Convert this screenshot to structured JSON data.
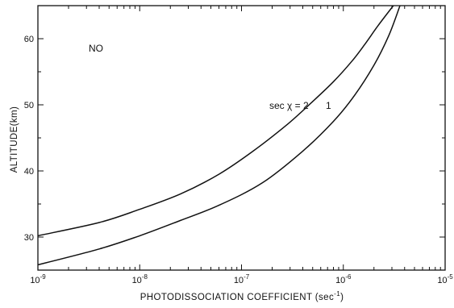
{
  "chart_data": {
    "type": "line",
    "title": "",
    "xlabel": "PHOTODISSOCIATION COEFFICIENT (sec",
    "xlabel_superscript": "-1",
    "xlabel_suffix": ")",
    "ylabel": "ALTITUDE(km)",
    "x_scale": "log",
    "xlim": [
      1e-09,
      1e-05
    ],
    "ylim": [
      25,
      65
    ],
    "x_ticks": [
      {
        "value": 1e-09,
        "base": "10",
        "exp": "-9"
      },
      {
        "value": 1e-08,
        "base": "10",
        "exp": "-8"
      },
      {
        "value": 1e-07,
        "base": "10",
        "exp": "-7"
      },
      {
        "value": 1e-06,
        "base": "10",
        "exp": "-6"
      },
      {
        "value": 1e-05,
        "base": "10",
        "exp": "-5"
      }
    ],
    "y_ticks": [
      30,
      40,
      50,
      60
    ],
    "grid": false,
    "annotations": {
      "species": "NO",
      "sec_chi_label": "sec χ  =  2",
      "second_value": "1"
    },
    "series": [
      {
        "x": [
          1e-09,
          4e-09,
          1e-08,
          2.5e-08,
          6e-08,
          1.3e-07,
          2.8e-07,
          5e-07,
          8e-07,
          1.2e-06,
          1.6e-06,
          2.2e-06,
          3.1e-06
        ],
        "y": [
          30.2,
          32.2,
          34.2,
          36.5,
          39.5,
          43,
          47,
          50.5,
          53.5,
          56.5,
          59,
          62,
          65
        ]
      },
      {
        "x": [
          1e-09,
          4e-09,
          1e-08,
          2.5e-08,
          6e-08,
          1.6e-07,
          4e-07,
          8e-07,
          1.3e-06,
          2e-06,
          2.8e-06,
          3.6e-06
        ],
        "y": [
          25.8,
          28.2,
          30.2,
          32.5,
          34.8,
          38.2,
          43,
          47.5,
          51.5,
          56,
          60.5,
          65
        ]
      }
    ]
  }
}
